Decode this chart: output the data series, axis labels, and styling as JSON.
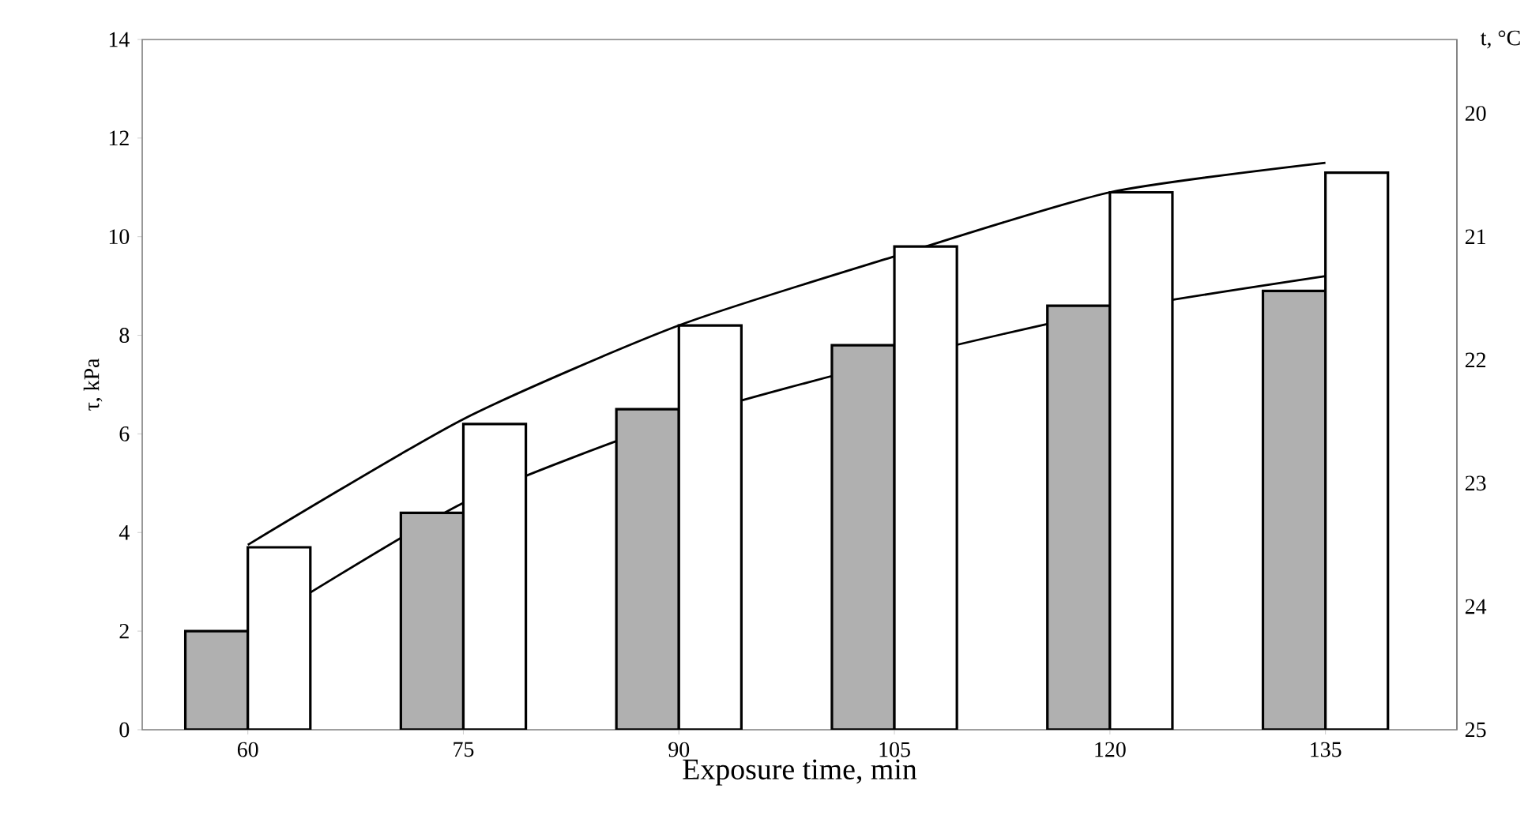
{
  "chart_data": {
    "type": "bar",
    "xlabel": "Exposure time, min",
    "ylabel": "τ, kPa",
    "y2label": "t, °C",
    "categories": [
      "60",
      "75",
      "90",
      "105",
      "120",
      "135"
    ],
    "ylim": [
      0,
      14
    ],
    "yticks": [
      0,
      2,
      4,
      6,
      8,
      10,
      12,
      14
    ],
    "y2lim": [
      25,
      19.4
    ],
    "y2ticks": [
      20,
      21,
      22,
      23,
      24,
      25
    ],
    "marker": "none",
    "line_style": "solid",
    "series": [
      {
        "color": "#b0b0b0",
        "values": [
          2.0,
          4.4,
          6.5,
          7.8,
          8.6,
          8.9
        ]
      },
      {
        "color": "#ffffff",
        "values": [
          3.7,
          6.2,
          8.2,
          9.8,
          10.9,
          11.3
        ]
      },
      {
        "type": "line",
        "color": "#000000",
        "values": [
          3.75,
          6.3,
          8.2,
          9.6,
          10.9,
          11.5
        ]
      },
      {
        "type": "line",
        "color": "#000000",
        "values": [
          2.0,
          4.6,
          6.3,
          7.5,
          8.5,
          9.2
        ]
      }
    ]
  }
}
